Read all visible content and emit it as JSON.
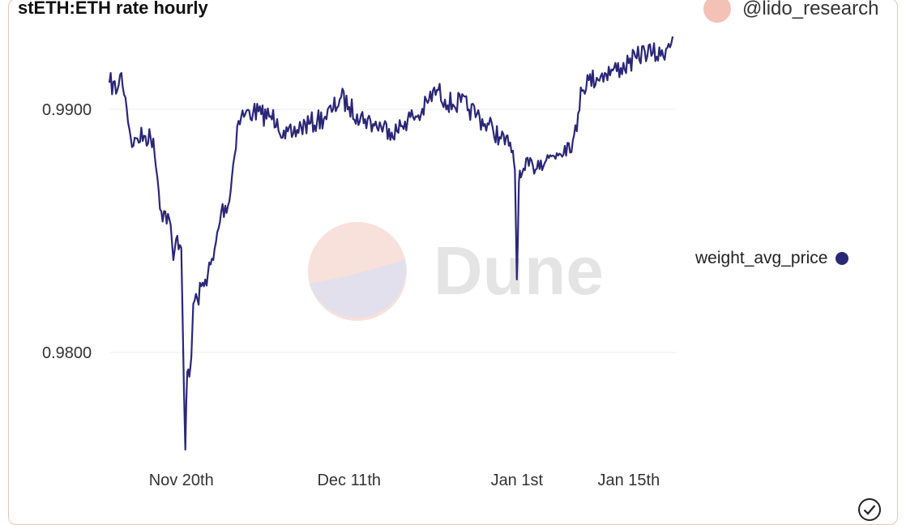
{
  "header": {
    "title": "stETH:ETH rate hourly",
    "author": "@lido_research",
    "avatar_icon": "avatar-circle"
  },
  "watermark": {
    "text": "Dune",
    "logo_icon": "dune-logo-icon"
  },
  "footer": {
    "status_icon": "check-circle-icon"
  },
  "colors": {
    "series": "#2b2777",
    "avatar": "#f4c1b6",
    "grid": "#ececec",
    "frame": "#e9c4b2"
  },
  "chart_data": {
    "type": "line",
    "title": "stETH:ETH rate hourly",
    "xlabel": "",
    "ylabel": "",
    "legend_position": "right",
    "grid": true,
    "x_range": [
      "2022-11-11",
      "2023-01-21"
    ],
    "ylim": [
      0.9755,
      0.9925
    ],
    "y_ticks": [
      {
        "value": 0.98,
        "label": "0.9800"
      },
      {
        "value": 0.99,
        "label": "0.9900"
      }
    ],
    "x_ticks": [
      {
        "value": "2022-11-20",
        "label": "Nov 20th"
      },
      {
        "value": "2022-12-11",
        "label": "Dec 11th"
      },
      {
        "value": "2023-01-01",
        "label": "Jan 1st"
      },
      {
        "value": "2023-01-15",
        "label": "Jan 15th"
      }
    ],
    "series": [
      {
        "name": "weight_avg_price",
        "color": "#2b2777",
        "x": [
          "2022-11-11 00:00",
          "2022-11-12 00:00",
          "2022-11-12 12:00",
          "2022-11-13 00:00",
          "2022-11-13 12:00",
          "2022-11-14 00:00",
          "2022-11-14 12:00",
          "2022-11-15 12:00",
          "2022-11-16 12:00",
          "2022-11-17 00:00",
          "2022-11-17 12:00",
          "2022-11-18 12:00",
          "2022-11-19 00:00",
          "2022-11-19 12:00",
          "2022-11-20 00:00",
          "2022-11-20 12:00",
          "2022-11-20 18:00",
          "2022-11-21 00:00",
          "2022-11-21 06:00",
          "2022-11-21 12:00",
          "2022-11-22 00:00",
          "2022-11-23 00:00",
          "2022-11-24 00:00",
          "2022-11-25 00:00",
          "2022-11-26 00:00",
          "2022-11-27 00:00",
          "2022-11-27 12:00",
          "2022-11-28 00:00",
          "2022-11-29 00:00",
          "2022-11-30 00:00",
          "2022-12-01 00:00",
          "2022-12-02 00:00",
          "2022-12-03 00:00",
          "2022-12-04 00:00",
          "2022-12-05 00:00",
          "2022-12-06 00:00",
          "2022-12-07 00:00",
          "2022-12-08 00:00",
          "2022-12-09 00:00",
          "2022-12-10 00:00",
          "2022-12-11 00:00",
          "2022-12-12 00:00",
          "2022-12-13 00:00",
          "2022-12-14 00:00",
          "2022-12-15 00:00",
          "2022-12-16 00:00",
          "2022-12-17 00:00",
          "2022-12-18 00:00",
          "2022-12-19 00:00",
          "2022-12-20 00:00",
          "2022-12-21 00:00",
          "2022-12-22 00:00",
          "2022-12-23 00:00",
          "2022-12-24 00:00",
          "2022-12-25 00:00",
          "2022-12-26 00:00",
          "2022-12-27 00:00",
          "2022-12-28 00:00",
          "2022-12-29 00:00",
          "2022-12-30 00:00",
          "2022-12-31 00:00",
          "2022-12-31 12:00",
          "2022-12-31 18:00",
          "2023-01-01 00:00",
          "2023-01-01 06:00",
          "2023-01-01 12:00",
          "2023-01-02 00:00",
          "2023-01-03 00:00",
          "2023-01-04 00:00",
          "2023-01-05 00:00",
          "2023-01-06 00:00",
          "2023-01-07 00:00",
          "2023-01-08 00:00",
          "2023-01-08 12:00",
          "2023-01-09 00:00",
          "2023-01-10 00:00",
          "2023-01-11 00:00",
          "2023-01-12 00:00",
          "2023-01-13 00:00",
          "2023-01-14 00:00",
          "2023-01-15 00:00",
          "2023-01-16 00:00",
          "2023-01-17 00:00",
          "2023-01-18 00:00",
          "2023-01-19 00:00",
          "2023-01-20 00:00",
          "2023-01-20 12:00"
        ],
        "y": [
          0.9911,
          0.9908,
          0.9915,
          0.9905,
          0.9892,
          0.9885,
          0.9888,
          0.9889,
          0.9888,
          0.9872,
          0.9858,
          0.9855,
          0.9838,
          0.9848,
          0.9843,
          0.976,
          0.9792,
          0.979,
          0.9798,
          0.982,
          0.9822,
          0.983,
          0.9838,
          0.9858,
          0.9862,
          0.9893,
          0.9897,
          0.9898,
          0.9899,
          0.9898,
          0.9897,
          0.9896,
          0.9888,
          0.989,
          0.9893,
          0.9894,
          0.9895,
          0.9897,
          0.99,
          0.9905,
          0.9901,
          0.9898,
          0.9896,
          0.9894,
          0.9893,
          0.9892,
          0.9891,
          0.9895,
          0.9897,
          0.9898,
          0.9904,
          0.9908,
          0.9904,
          0.9902,
          0.9903,
          0.99,
          0.9898,
          0.9894,
          0.9892,
          0.9888,
          0.9885,
          0.9883,
          0.9875,
          0.983,
          0.987,
          0.9872,
          0.9875,
          0.9877,
          0.9879,
          0.988,
          0.9882,
          0.9885,
          0.9887,
          0.9891,
          0.9909,
          0.9912,
          0.9913,
          0.9915,
          0.9916,
          0.9917,
          0.9919,
          0.9921,
          0.9924,
          0.9923,
          0.9922,
          0.9927,
          0.993
        ]
      }
    ]
  }
}
